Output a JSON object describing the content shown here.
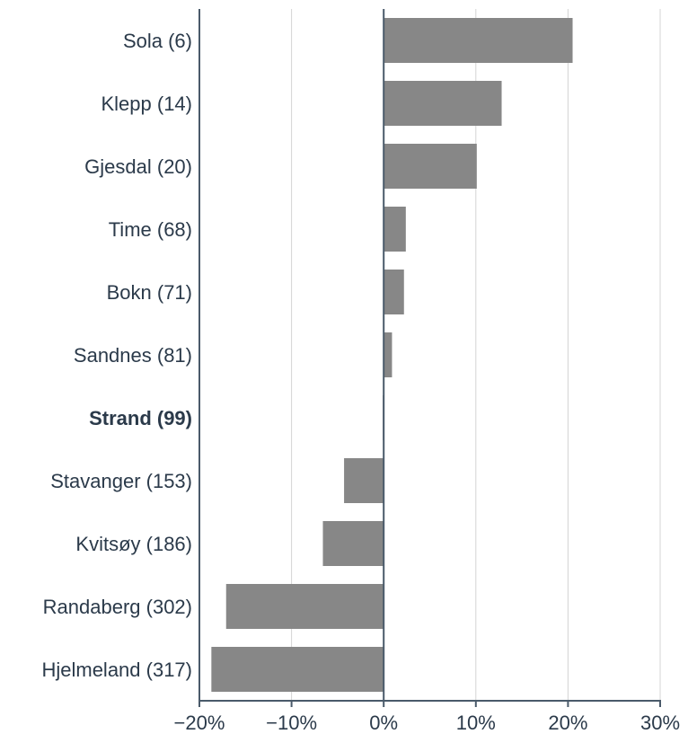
{
  "chart_data": {
    "type": "bar",
    "orientation": "horizontal",
    "categories": [
      "Sola (6)",
      "Klepp (14)",
      "Gjesdal (20)",
      "Time (68)",
      "Bokn (71)",
      "Sandnes (81)",
      "Strand (99)",
      "Stavanger (153)",
      "Kvitsøy (186)",
      "Randaberg (302)",
      "Hjelmeland (317)"
    ],
    "highlighted_category": "Strand (99)",
    "values": [
      20.5,
      12.8,
      10.1,
      2.4,
      2.2,
      0.9,
      -0.1,
      -4.3,
      -6.6,
      -17.1,
      -18.7
    ],
    "xlim": [
      -20,
      30
    ],
    "xticks": [
      -20,
      -10,
      0,
      10,
      20,
      30
    ],
    "xtick_labels": [
      "−20%",
      "−10%",
      "0%",
      "10%",
      "20%",
      "30%"
    ],
    "grid": "vertical",
    "bar_color": "#878787",
    "axis_color": "#4a5a6a",
    "grid_color": "#d4d4d4",
    "title": "",
    "xlabel": "",
    "ylabel": ""
  }
}
